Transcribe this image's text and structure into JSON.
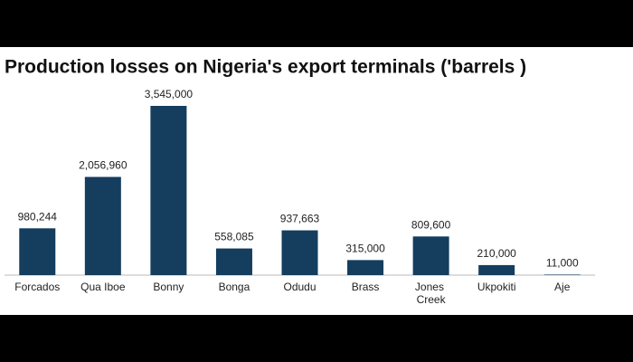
{
  "chart_data": {
    "type": "bar",
    "title": "Production losses on Nigeria's export terminals ('barrels )",
    "categories": [
      "Forcados",
      "Qua Iboe",
      "Bonny",
      "Bonga",
      "Odudu",
      "Brass",
      "Jones Creek",
      "Ukpokiti",
      "Aje"
    ],
    "values": [
      980244,
      2056960,
      3545000,
      558085,
      937663,
      315000,
      809600,
      210000,
      11000
    ],
    "value_labels": [
      "980,244",
      "2,056,960",
      "3,545,000",
      "558,085",
      "937,663",
      "315,000",
      "809,600",
      "210,000",
      "11,000"
    ],
    "color": "#143d5e"
  }
}
